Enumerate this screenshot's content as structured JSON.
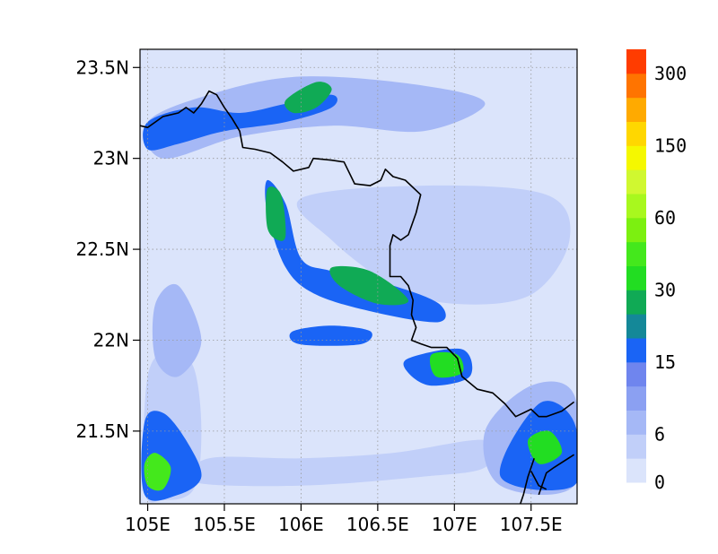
{
  "chart_data": {
    "type": "heatmap",
    "title": "",
    "xlabel": "",
    "ylabel": "",
    "xlim": [
      104.95,
      107.8
    ],
    "ylim": [
      21.1,
      23.6
    ],
    "x_ticks": [
      {
        "value": 105.0,
        "label": "105E"
      },
      {
        "value": 105.5,
        "label": "105.5E"
      },
      {
        "value": 106.0,
        "label": "106E"
      },
      {
        "value": 106.5,
        "label": "106.5E"
      },
      {
        "value": 107.0,
        "label": "107E"
      },
      {
        "value": 107.5,
        "label": "107.5E"
      }
    ],
    "y_ticks": [
      {
        "value": 21.5,
        "label": "21.5N"
      },
      {
        "value": 22.0,
        "label": "22N"
      },
      {
        "value": 22.5,
        "label": "22.5N"
      },
      {
        "value": 23.0,
        "label": "23N"
      },
      {
        "value": 23.5,
        "label": "23.5N"
      }
    ],
    "grid": true,
    "background_color": "#dbe4fb",
    "colorbar": {
      "levels": [
        0,
        3,
        6,
        9,
        12,
        15,
        20,
        25,
        30,
        40,
        50,
        60,
        80,
        100,
        150,
        200,
        250,
        300,
        350
      ],
      "colors": [
        "#dbe4fb",
        "#c1cff9",
        "#a5b8f6",
        "#8ba0f2",
        "#6f85ee",
        "#1a64f5",
        "#148898",
        "#10aa55",
        "#22dd22",
        "#44e81c",
        "#7cf010",
        "#a8f81e",
        "#d0f830",
        "#f5f800",
        "#ffd700",
        "#ffaa00",
        "#ff7400",
        "#ff3c00"
      ],
      "tick_labels": [
        {
          "level_index": 0,
          "label": "0"
        },
        {
          "level_index": 2,
          "label": "6"
        },
        {
          "level_index": 5,
          "label": "15"
        },
        {
          "level_index": 8,
          "label": "30"
        },
        {
          "level_index": 11,
          "label": "60"
        },
        {
          "level_index": 14,
          "label": "150"
        },
        {
          "level_index": 17,
          "label": "300"
        }
      ]
    },
    "regions": [
      {
        "name": "east-band",
        "fill_value": 5,
        "points": [
          [
            106.0,
            22.78
          ],
          [
            106.8,
            22.85
          ],
          [
            107.6,
            22.8
          ],
          [
            107.75,
            22.55
          ],
          [
            107.5,
            22.25
          ],
          [
            107.0,
            22.2
          ],
          [
            106.6,
            22.3
          ],
          [
            106.2,
            22.55
          ]
        ]
      },
      {
        "name": "south-west-patch",
        "fill_value": 5,
        "points": [
          [
            104.98,
            21.18
          ],
          [
            105.1,
            21.12
          ],
          [
            105.3,
            21.18
          ],
          [
            105.35,
            21.5
          ],
          [
            105.3,
            21.85
          ],
          [
            105.15,
            21.95
          ],
          [
            105.0,
            21.8
          ]
        ]
      },
      {
        "name": "south-band",
        "fill_value": 5,
        "points": [
          [
            105.3,
            21.22
          ],
          [
            106.0,
            21.2
          ],
          [
            106.8,
            21.25
          ],
          [
            107.2,
            21.3
          ],
          [
            107.2,
            21.45
          ],
          [
            106.6,
            21.38
          ],
          [
            106.0,
            21.35
          ],
          [
            105.4,
            21.35
          ]
        ]
      },
      {
        "name": "north-band",
        "fill_value": 8,
        "points": [
          [
            105.0,
            23.2
          ],
          [
            105.4,
            23.35
          ],
          [
            106.0,
            23.45
          ],
          [
            106.8,
            23.4
          ],
          [
            107.2,
            23.3
          ],
          [
            106.8,
            23.15
          ],
          [
            106.2,
            23.18
          ],
          [
            105.6,
            23.12
          ],
          [
            105.1,
            23.0
          ]
        ]
      },
      {
        "name": "west-band",
        "fill_value": 8,
        "points": [
          [
            105.05,
            22.2
          ],
          [
            105.2,
            22.3
          ],
          [
            105.35,
            22.0
          ],
          [
            105.2,
            21.8
          ],
          [
            105.05,
            21.9
          ]
        ]
      },
      {
        "name": "south-east-patch",
        "fill_value": 8,
        "points": [
          [
            107.2,
            21.5
          ],
          [
            107.5,
            21.75
          ],
          [
            107.78,
            21.7
          ],
          [
            107.78,
            21.2
          ],
          [
            107.3,
            21.2
          ]
        ]
      },
      {
        "name": "north-west-blue",
        "fill_value": 16,
        "points": [
          [
            105.0,
            23.2
          ],
          [
            105.3,
            23.28
          ],
          [
            105.6,
            23.25
          ],
          [
            105.9,
            23.3
          ],
          [
            106.2,
            23.35
          ],
          [
            106.2,
            23.28
          ],
          [
            105.9,
            23.2
          ],
          [
            105.5,
            23.15
          ],
          [
            105.2,
            23.08
          ],
          [
            105.0,
            23.05
          ]
        ]
      },
      {
        "name": "central-diagonal",
        "fill_value": 16,
        "points": [
          [
            105.78,
            22.88
          ],
          [
            105.9,
            22.75
          ],
          [
            106.0,
            22.45
          ],
          [
            106.2,
            22.38
          ],
          [
            106.6,
            22.3
          ],
          [
            106.9,
            22.2
          ],
          [
            106.9,
            22.1
          ],
          [
            106.5,
            22.15
          ],
          [
            106.1,
            22.25
          ],
          [
            105.9,
            22.4
          ],
          [
            105.78,
            22.7
          ]
        ]
      },
      {
        "name": "mid-band",
        "fill_value": 16,
        "points": [
          [
            105.95,
            22.05
          ],
          [
            106.2,
            22.08
          ],
          [
            106.45,
            22.05
          ],
          [
            106.4,
            21.98
          ],
          [
            106.1,
            21.97
          ],
          [
            105.95,
            21.99
          ]
        ]
      },
      {
        "name": "south-east-blue",
        "fill_value": 16,
        "points": [
          [
            106.7,
            21.9
          ],
          [
            107.05,
            21.95
          ],
          [
            107.1,
            21.8
          ],
          [
            106.85,
            21.75
          ],
          [
            106.7,
            21.82
          ]
        ]
      },
      {
        "name": "bottom-corner-blue",
        "fill_value": 16,
        "points": [
          [
            107.3,
            21.25
          ],
          [
            107.55,
            21.65
          ],
          [
            107.78,
            21.55
          ],
          [
            107.78,
            21.2
          ]
        ]
      },
      {
        "name": "south-west-blue",
        "fill_value": 16,
        "points": [
          [
            104.98,
            21.15
          ],
          [
            105.2,
            21.15
          ],
          [
            105.35,
            21.25
          ],
          [
            105.25,
            21.45
          ],
          [
            105.1,
            21.6
          ],
          [
            104.98,
            21.55
          ]
        ]
      },
      {
        "name": "north-green",
        "fill_value": 25,
        "points": [
          [
            105.9,
            23.32
          ],
          [
            106.1,
            23.42
          ],
          [
            106.2,
            23.38
          ],
          [
            106.1,
            23.28
          ],
          [
            105.95,
            23.25
          ]
        ]
      },
      {
        "name": "ridge-green",
        "fill_value": 25,
        "points": [
          [
            105.78,
            22.83
          ],
          [
            105.87,
            22.8
          ],
          [
            105.9,
            22.58
          ],
          [
            105.85,
            22.55
          ],
          [
            105.78,
            22.62
          ]
        ]
      },
      {
        "name": "mid-green",
        "fill_value": 25,
        "points": [
          [
            106.2,
            22.4
          ],
          [
            106.45,
            22.38
          ],
          [
            106.7,
            22.22
          ],
          [
            106.5,
            22.2
          ],
          [
            106.25,
            22.3
          ]
        ]
      },
      {
        "name": "east-green",
        "fill_value": 30,
        "points": [
          [
            106.85,
            21.92
          ],
          [
            107.02,
            21.92
          ],
          [
            107.05,
            21.82
          ],
          [
            106.88,
            21.8
          ]
        ]
      },
      {
        "name": "corner-green",
        "fill_value": 35,
        "points": [
          [
            107.48,
            21.45
          ],
          [
            107.62,
            21.5
          ],
          [
            107.7,
            21.38
          ],
          [
            107.55,
            21.32
          ]
        ]
      },
      {
        "name": "south-west-green",
        "fill_value": 40,
        "points": [
          [
            105.0,
            21.2
          ],
          [
            105.1,
            21.18
          ],
          [
            105.15,
            21.3
          ],
          [
            105.05,
            21.38
          ],
          [
            104.98,
            21.32
          ]
        ]
      }
    ],
    "borders": [
      {
        "name": "border-north",
        "points": [
          [
            104.95,
            23.18
          ],
          [
            105.0,
            23.17
          ],
          [
            105.05,
            23.2
          ],
          [
            105.1,
            23.23
          ],
          [
            105.2,
            23.25
          ],
          [
            105.25,
            23.28
          ],
          [
            105.3,
            23.25
          ],
          [
            105.35,
            23.3
          ],
          [
            105.4,
            23.37
          ],
          [
            105.45,
            23.35
          ],
          [
            105.5,
            23.28
          ],
          [
            105.55,
            23.22
          ],
          [
            105.6,
            23.15
          ],
          [
            105.62,
            23.06
          ],
          [
            105.7,
            23.05
          ],
          [
            105.8,
            23.03
          ],
          [
            105.88,
            22.98
          ],
          [
            105.95,
            22.93
          ],
          [
            106.05,
            22.95
          ],
          [
            106.08,
            23.0
          ],
          [
            106.2,
            22.99
          ],
          [
            106.28,
            22.98
          ],
          [
            106.35,
            22.86
          ],
          [
            106.45,
            22.85
          ],
          [
            106.52,
            22.88
          ],
          [
            106.55,
            22.94
          ],
          [
            106.6,
            22.9
          ],
          [
            106.68,
            22.88
          ],
          [
            106.78,
            22.8
          ],
          [
            106.75,
            22.7
          ],
          [
            106.7,
            22.58
          ],
          [
            106.65,
            22.55
          ],
          [
            106.6,
            22.58
          ],
          [
            106.58,
            22.52
          ],
          [
            106.58,
            22.35
          ],
          [
            106.65,
            22.35
          ],
          [
            106.7,
            22.3
          ],
          [
            106.73,
            22.22
          ],
          [
            106.72,
            22.14
          ],
          [
            106.75,
            22.07
          ],
          [
            106.72,
            22.0
          ],
          [
            106.78,
            21.98
          ],
          [
            106.85,
            21.96
          ],
          [
            106.95,
            21.96
          ],
          [
            107.02,
            21.9
          ],
          [
            107.05,
            21.8
          ],
          [
            107.15,
            21.73
          ],
          [
            107.25,
            21.71
          ],
          [
            107.33,
            21.65
          ],
          [
            107.4,
            21.58
          ],
          [
            107.45,
            21.6
          ],
          [
            107.5,
            21.62
          ],
          [
            107.55,
            21.58
          ],
          [
            107.6,
            21.58
          ],
          [
            107.7,
            21.61
          ],
          [
            107.78,
            21.66
          ]
        ]
      },
      {
        "name": "border-coast-1",
        "points": [
          [
            107.55,
            21.15
          ],
          [
            107.6,
            21.27
          ],
          [
            107.65,
            21.3
          ],
          [
            107.78,
            21.37
          ]
        ]
      },
      {
        "name": "border-coast-2",
        "points": [
          [
            107.52,
            21.35
          ],
          [
            107.48,
            21.25
          ],
          [
            107.45,
            21.15
          ],
          [
            107.43,
            21.1
          ]
        ]
      },
      {
        "name": "border-coast-3",
        "points": [
          [
            107.5,
            21.28
          ],
          [
            107.55,
            21.2
          ],
          [
            107.6,
            21.18
          ]
        ]
      }
    ]
  }
}
